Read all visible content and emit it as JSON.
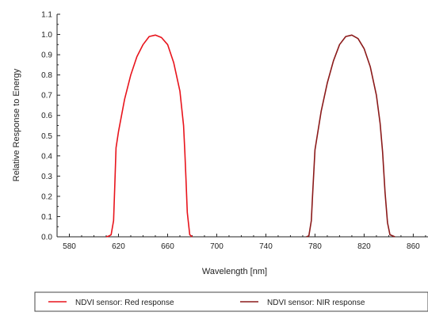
{
  "chart_data": {
    "type": "line",
    "title": "",
    "xlabel": "Wavelength [nm]",
    "ylabel": "Relative Response to Energy",
    "xlim": [
      570,
      872
    ],
    "ylim": [
      0.0,
      1.1
    ],
    "x_ticks": [
      580,
      620,
      660,
      700,
      740,
      780,
      820,
      860
    ],
    "y_ticks": [
      "0.0",
      "0.1",
      "0.2",
      "0.3",
      "0.4",
      "0.5",
      "0.6",
      "0.7",
      "0.8",
      "0.9",
      "1.0",
      "1.1"
    ],
    "grid": false,
    "legend_position": "bottom",
    "series": [
      {
        "name": "NDVI sensor: Red response",
        "color": "#e8141c",
        "x": [
          610,
          612,
          614,
          616,
          617,
          618,
          620,
          625,
          630,
          635,
          640,
          645,
          650,
          655,
          660,
          665,
          670,
          673,
          674,
          675,
          676,
          678,
          680
        ],
        "y": [
          0.0,
          0.003,
          0.01,
          0.08,
          0.25,
          0.44,
          0.52,
          0.68,
          0.8,
          0.89,
          0.95,
          0.99,
          0.997,
          0.985,
          0.95,
          0.86,
          0.72,
          0.55,
          0.42,
          0.28,
          0.12,
          0.01,
          0.0
        ]
      },
      {
        "name": "NDVI sensor: NIR response",
        "color": "#8b1a1a",
        "x": [
          773,
          775,
          777,
          778,
          780,
          785,
          790,
          795,
          800,
          805,
          810,
          815,
          820,
          825,
          830,
          833,
          835,
          837,
          839,
          841,
          845
        ],
        "y": [
          0.0,
          0.005,
          0.08,
          0.2,
          0.43,
          0.62,
          0.76,
          0.87,
          0.95,
          0.99,
          0.997,
          0.98,
          0.93,
          0.84,
          0.7,
          0.56,
          0.42,
          0.22,
          0.07,
          0.01,
          0.0
        ]
      }
    ]
  }
}
